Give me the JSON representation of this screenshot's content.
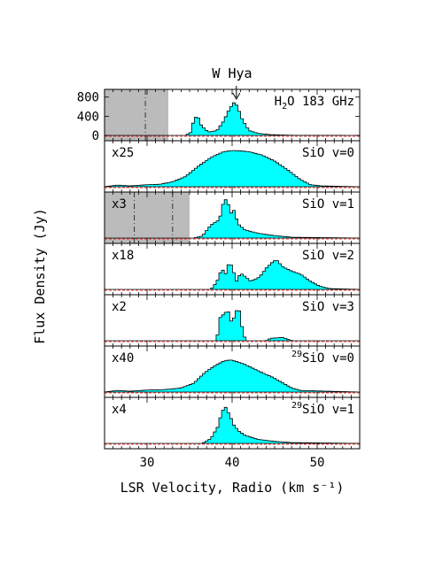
{
  "chart_data": {
    "type": "line",
    "style": "histogram-step",
    "title": "W Hya",
    "xlabel": "LSR Velocity, Radio (km s⁻¹)",
    "ylabel": "Flux Density (Jy)",
    "xlim": [
      25,
      55
    ],
    "xticks": [
      30,
      40,
      50
    ],
    "colors": {
      "fill": "#00ffff",
      "shade": "#bbbbbb",
      "residual": "#ff0000"
    },
    "panels": [
      {
        "line": "H2O 183 GHz",
        "label_main": "H",
        "label_sub": "2",
        "label_rest": "O 183 GHz",
        "scale": "",
        "ylim": [
          0,
          850
        ],
        "yticks": [
          0,
          400,
          800
        ],
        "shade": [
          25,
          32.5
        ],
        "dashed_lines": [
          29.8
        ],
        "arrow_at": 40.5,
        "points": [
          [
            25,
            0
          ],
          [
            34.5,
            0
          ],
          [
            35.1,
            60
          ],
          [
            35.5,
            320
          ],
          [
            35.9,
            430
          ],
          [
            36.4,
            200
          ],
          [
            37.2,
            70
          ],
          [
            38.2,
            100
          ],
          [
            39,
            300
          ],
          [
            39.7,
            560
          ],
          [
            40.2,
            680
          ],
          [
            40.6,
            620
          ],
          [
            41.2,
            330
          ],
          [
            42,
            100
          ],
          [
            43,
            45
          ],
          [
            44.5,
            15
          ],
          [
            47,
            3
          ],
          [
            55,
            0
          ]
        ]
      },
      {
        "line": "SiO v=0",
        "label_main": "SiO v=0",
        "scale": "x25",
        "ylim": [
          0,
          1
        ],
        "shade": null,
        "dashed_lines": [],
        "points": [
          [
            25,
            0
          ],
          [
            26.5,
            0.04
          ],
          [
            28,
            0.02
          ],
          [
            30,
            0.05
          ],
          [
            31.5,
            0.06
          ],
          [
            33,
            0.12
          ],
          [
            34.5,
            0.25
          ],
          [
            36,
            0.5
          ],
          [
            37.5,
            0.72
          ],
          [
            39,
            0.86
          ],
          [
            40,
            0.89
          ],
          [
            41,
            0.88
          ],
          [
            42,
            0.86
          ],
          [
            43.5,
            0.78
          ],
          [
            45,
            0.63
          ],
          [
            46.5,
            0.42
          ],
          [
            48,
            0.18
          ],
          [
            49.2,
            0.05
          ],
          [
            50.5,
            0.02
          ],
          [
            55,
            0
          ]
        ]
      },
      {
        "line": "SiO v=1",
        "label_main": "SiO v=1",
        "scale": "x3",
        "ylim": [
          0,
          1
        ],
        "shade": [
          25,
          35
        ],
        "dashed_lines": [
          28.5,
          33
        ],
        "points": [
          [
            25,
            0
          ],
          [
            35.5,
            0
          ],
          [
            36.5,
            0.05
          ],
          [
            37.5,
            0.32
          ],
          [
            38.5,
            0.45
          ],
          [
            39,
            0.9
          ],
          [
            39.4,
            0.97
          ],
          [
            39.8,
            0.6
          ],
          [
            40.2,
            0.68
          ],
          [
            40.7,
            0.35
          ],
          [
            41.5,
            0.2
          ],
          [
            43,
            0.12
          ],
          [
            45,
            0.06
          ],
          [
            47,
            0.02
          ],
          [
            55,
            0
          ]
        ]
      },
      {
        "line": "SiO v=2",
        "label_main": "SiO v=2",
        "scale": "x18",
        "ylim": [
          0,
          1
        ],
        "shade": null,
        "dashed_lines": [],
        "points": [
          [
            25,
            0
          ],
          [
            37.5,
            0
          ],
          [
            38.2,
            0.18
          ],
          [
            38.8,
            0.52
          ],
          [
            39.2,
            0.36
          ],
          [
            39.7,
            0.7
          ],
          [
            40.1,
            0.48
          ],
          [
            40.5,
            0.2
          ],
          [
            41,
            0.4
          ],
          [
            41.5,
            0.32
          ],
          [
            42.2,
            0.2
          ],
          [
            43.2,
            0.3
          ],
          [
            44,
            0.52
          ],
          [
            44.7,
            0.66
          ],
          [
            45.2,
            0.73
          ],
          [
            46,
            0.55
          ],
          [
            47,
            0.45
          ],
          [
            48,
            0.38
          ],
          [
            49.2,
            0.2
          ],
          [
            50.3,
            0.08
          ],
          [
            51.5,
            0.02
          ],
          [
            55,
            0
          ]
        ]
      },
      {
        "line": "SiO v=3",
        "label_main": "SiO v=3",
        "scale": "x2",
        "ylim": [
          0,
          1
        ],
        "shade": null,
        "dashed_lines": [],
        "points": [
          [
            25,
            0
          ],
          [
            38.2,
            0
          ],
          [
            38.5,
            0.55
          ],
          [
            39,
            0.65
          ],
          [
            39.5,
            0.75
          ],
          [
            40,
            0.4
          ],
          [
            40.4,
            0.72
          ],
          [
            40.8,
            0.78
          ],
          [
            41.2,
            0.3
          ],
          [
            41.6,
            0
          ],
          [
            44,
            0
          ],
          [
            44.5,
            0.06
          ],
          [
            46,
            0.08
          ],
          [
            47,
            0
          ],
          [
            55,
            0
          ]
        ]
      },
      {
        "line": "29SiO v=0",
        "label_main": "SiO v=0",
        "label_sup": "29",
        "scale": "x40",
        "ylim": [
          0,
          1
        ],
        "shade": null,
        "dashed_lines": [],
        "points": [
          [
            25,
            0
          ],
          [
            26.5,
            0.04
          ],
          [
            28,
            0.02
          ],
          [
            30,
            0.05
          ],
          [
            32,
            0.06
          ],
          [
            34,
            0.1
          ],
          [
            35.5,
            0.22
          ],
          [
            36.8,
            0.48
          ],
          [
            38,
            0.65
          ],
          [
            39,
            0.76
          ],
          [
            39.8,
            0.79
          ],
          [
            40.5,
            0.75
          ],
          [
            41.5,
            0.68
          ],
          [
            42.5,
            0.58
          ],
          [
            43.5,
            0.48
          ],
          [
            44.8,
            0.36
          ],
          [
            46,
            0.22
          ],
          [
            47,
            0.1
          ],
          [
            48,
            0.04
          ],
          [
            55,
            0
          ]
        ]
      },
      {
        "line": "29SiO v=1",
        "label_main": "SiO v=1",
        "label_sup": "29",
        "scale": "x4",
        "ylim": [
          0,
          1
        ],
        "shade": null,
        "dashed_lines": [],
        "points": [
          [
            25,
            0
          ],
          [
            36.5,
            0
          ],
          [
            37.5,
            0.12
          ],
          [
            38.3,
            0.4
          ],
          [
            38.8,
            0.78
          ],
          [
            39.2,
            0.9
          ],
          [
            39.7,
            0.7
          ],
          [
            40.2,
            0.45
          ],
          [
            40.8,
            0.3
          ],
          [
            41.5,
            0.2
          ],
          [
            43,
            0.1
          ],
          [
            45,
            0.05
          ],
          [
            47,
            0.02
          ],
          [
            55,
            0
          ]
        ]
      }
    ]
  }
}
